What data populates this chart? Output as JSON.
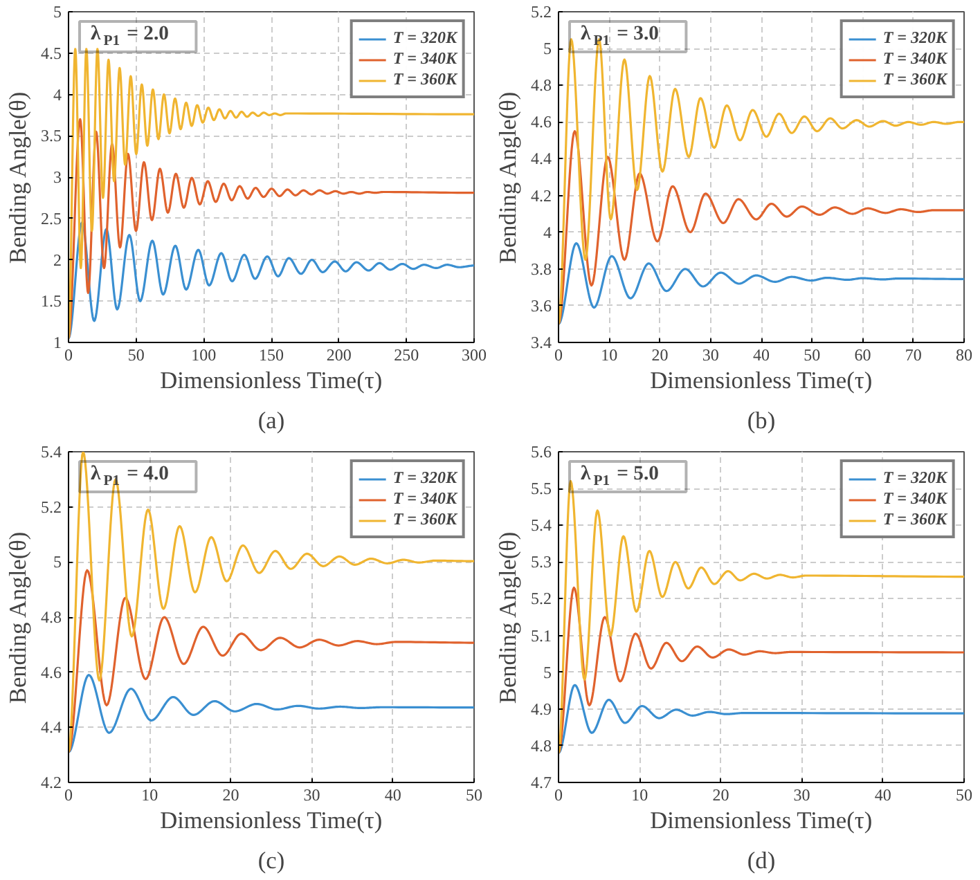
{
  "chart_data": [
    {
      "type": "line",
      "xlabel": "Dimensionless Time(τ)",
      "ylabel": "Bending Angle(θ)",
      "annotations": [
        "λ$_{P1}$ = 2.0",
        "(a)"
      ],
      "xlim": [
        0,
        300
      ],
      "ylim": [
        1,
        5
      ],
      "xticks": [
        0,
        50,
        100,
        150,
        200,
        250,
        300
      ],
      "yticks": [
        1,
        1.5,
        2,
        2.5,
        3,
        3.5,
        4,
        4.5,
        5
      ],
      "grid": true,
      "legend": "top right",
      "line_style": "solid",
      "series": [
        {
          "name": "T = 320K",
          "color": "#3a8fd1",
          "x": [
            0,
            10,
            19,
            28,
            36,
            45,
            53,
            62,
            70,
            79,
            87,
            96,
            104,
            113,
            121,
            130,
            138,
            147,
            155,
            163,
            172,
            180,
            188,
            197,
            205,
            213,
            222,
            230,
            238,
            247,
            255,
            263,
            272,
            280,
            289,
            300
          ],
          "values": [
            1.05,
            2.45,
            1.26,
            2.37,
            1.4,
            2.3,
            1.5,
            2.23,
            1.58,
            2.17,
            1.64,
            2.12,
            1.69,
            2.08,
            1.74,
            2.06,
            1.77,
            2.04,
            1.8,
            2.02,
            1.83,
            2.0,
            1.85,
            1.98,
            1.86,
            1.97,
            1.87,
            1.96,
            1.88,
            1.95,
            1.89,
            1.94,
            1.9,
            1.94,
            1.91,
            1.93
          ]
        },
        {
          "name": "T = 340K",
          "color": "#e0622d",
          "x": [
            0,
            8.6,
            14.5,
            20.4,
            26.3,
            32.2,
            38.1,
            44,
            49.9,
            55.8,
            61.7,
            67.6,
            73.5,
            79.4,
            85.3,
            91.2,
            97.1,
            103,
            108.9,
            114.8,
            120.7,
            126.6,
            132.5,
            138.4,
            144.3,
            150.2,
            156.1,
            162,
            167.9,
            173.8,
            179.7,
            185.6,
            191.5,
            197.4,
            203.3,
            209.2,
            215.1,
            221,
            226.9,
            232.8,
            300
          ],
          "values": [
            1.05,
            3.7,
            1.6,
            3.55,
            1.9,
            3.4,
            2.15,
            3.28,
            2.35,
            3.18,
            2.48,
            3.1,
            2.57,
            3.04,
            2.63,
            2.99,
            2.67,
            2.95,
            2.7,
            2.92,
            2.72,
            2.89,
            2.74,
            2.87,
            2.76,
            2.86,
            2.77,
            2.85,
            2.78,
            2.84,
            2.79,
            2.84,
            2.8,
            2.83,
            2.8,
            2.82,
            2.8,
            2.82,
            2.81,
            2.82,
            2.81
          ]
        },
        {
          "name": "T = 360K",
          "color": "#f0b530",
          "x": [
            0,
            5,
            9.1,
            13.2,
            17.3,
            21.4,
            25.5,
            29.6,
            33.7,
            37.8,
            41.9,
            46,
            50.1,
            54.2,
            58.3,
            62.4,
            66.5,
            70.6,
            74.7,
            78.8,
            82.9,
            87,
            91.1,
            95.2,
            99.3,
            103.4,
            107.5,
            111.6,
            115.7,
            119.8,
            123.9,
            128,
            132.1,
            136.2,
            140.3,
            144.4,
            148.5,
            152.6,
            156.7,
            160.8,
            300
          ],
          "values": [
            1.05,
            4.55,
            1.9,
            4.55,
            2.35,
            4.55,
            2.75,
            4.42,
            2.95,
            4.32,
            3.15,
            4.22,
            3.28,
            4.12,
            3.38,
            4.06,
            3.46,
            4.0,
            3.53,
            3.95,
            3.58,
            3.9,
            3.62,
            3.87,
            3.66,
            3.84,
            3.69,
            3.82,
            3.71,
            3.8,
            3.72,
            3.79,
            3.73,
            3.78,
            3.74,
            3.78,
            3.75,
            3.77,
            3.75,
            3.77,
            3.76
          ]
        }
      ]
    },
    {
      "type": "line",
      "xlabel": "Dimensionless Time(τ)",
      "ylabel": "Bending Angle(θ)",
      "annotations": [
        "λ$_{P1}$ = 3.0",
        "(b)"
      ],
      "xlim": [
        0,
        80
      ],
      "ylim": [
        3.4,
        5.2
      ],
      "xticks": [
        0,
        10,
        20,
        30,
        40,
        50,
        60,
        70,
        80
      ],
      "yticks": [
        3.4,
        3.6,
        3.8,
        4,
        4.2,
        4.4,
        4.6,
        4.8,
        5,
        5.2
      ],
      "grid": true,
      "legend": "top right",
      "line_style": "solid",
      "series": [
        {
          "name": "T = 320K",
          "color": "#3a8fd1",
          "x": [
            0,
            3.5,
            7,
            10.5,
            14.2,
            17.8,
            21.3,
            25,
            28.5,
            32,
            35.6,
            39,
            42.7,
            46,
            49.8,
            53,
            57,
            60,
            64,
            67,
            80
          ],
          "values": [
            3.5,
            3.94,
            3.59,
            3.87,
            3.64,
            3.83,
            3.68,
            3.8,
            3.705,
            3.78,
            3.72,
            3.765,
            3.73,
            3.757,
            3.737,
            3.752,
            3.741,
            3.75,
            3.743,
            3.748,
            3.745
          ]
        },
        {
          "name": "T = 340K",
          "color": "#e0622d",
          "x": [
            0,
            3.2,
            6.5,
            9.7,
            13,
            16,
            19.5,
            22.5,
            26,
            29,
            32.5,
            35.5,
            39,
            42,
            45,
            48,
            51.5,
            54.5,
            58,
            61,
            64.5,
            67.5,
            71,
            74,
            80
          ],
          "values": [
            3.5,
            4.55,
            3.71,
            4.41,
            3.85,
            4.32,
            3.95,
            4.25,
            4.0,
            4.21,
            4.05,
            4.18,
            4.07,
            4.155,
            4.085,
            4.14,
            4.095,
            4.135,
            4.1,
            4.13,
            4.105,
            4.125,
            4.11,
            4.12,
            4.12
          ]
        },
        {
          "name": "T = 360K",
          "color": "#f0b530",
          "x": [
            0,
            2.5,
            5.3,
            8,
            10.3,
            13,
            15.5,
            18,
            20.5,
            23,
            25.7,
            28,
            30.7,
            33.2,
            35.8,
            38.3,
            41,
            43.5,
            46,
            48.5,
            51,
            53.6,
            56,
            58.8,
            61.3,
            64,
            66.5,
            69,
            71.5,
            74,
            76.5,
            79,
            80
          ],
          "values": [
            3.5,
            5.05,
            3.85,
            5.05,
            4.07,
            4.94,
            4.23,
            4.85,
            4.33,
            4.78,
            4.41,
            4.73,
            4.46,
            4.69,
            4.5,
            4.665,
            4.52,
            4.645,
            4.54,
            4.63,
            4.55,
            4.62,
            4.565,
            4.61,
            4.575,
            4.605,
            4.58,
            4.6,
            4.585,
            4.6,
            4.59,
            4.6,
            4.6
          ]
        }
      ]
    },
    {
      "type": "line",
      "xlabel": "Dimensionless Time(τ)",
      "ylabel": "Bending Angle(θ)",
      "annotations": [
        "λ$_{P1}$ = 4.0",
        "(c)"
      ],
      "xlim": [
        0,
        50
      ],
      "ylim": [
        4.2,
        5.4
      ],
      "xticks": [
        0,
        10,
        20,
        30,
        40,
        50
      ],
      "yticks": [
        4.2,
        4.4,
        4.6,
        4.8,
        5,
        5.2,
        5.4
      ],
      "grid": true,
      "legend": "top right",
      "line_style": "solid",
      "series": [
        {
          "name": "T = 320K",
          "color": "#3a8fd1",
          "x": [
            0,
            2.5,
            5,
            7.7,
            10.2,
            12.9,
            15.4,
            18,
            20.5,
            23.2,
            25.7,
            28.3,
            30.9,
            33.5,
            36,
            38.6,
            50
          ],
          "values": [
            4.31,
            4.59,
            4.38,
            4.54,
            4.425,
            4.51,
            4.445,
            4.495,
            4.458,
            4.485,
            4.465,
            4.478,
            4.468,
            4.475,
            4.47,
            4.473,
            4.472
          ]
        },
        {
          "name": "T = 340K",
          "color": "#e0622d",
          "x": [
            0,
            2.3,
            4.7,
            7,
            9.5,
            11.8,
            14.2,
            16.6,
            19,
            21.3,
            23.7,
            26.1,
            28.5,
            30.9,
            33.3,
            35.6,
            38,
            40.4,
            50
          ],
          "values": [
            4.31,
            4.97,
            4.48,
            4.87,
            4.575,
            4.8,
            4.63,
            4.765,
            4.66,
            4.74,
            4.68,
            4.725,
            4.69,
            4.718,
            4.697,
            4.713,
            4.702,
            4.71,
            4.707
          ]
        },
        {
          "name": "T = 360K",
          "color": "#f0b530",
          "x": [
            0,
            1.8,
            3.8,
            5.8,
            7.8,
            9.8,
            11.7,
            13.7,
            15.6,
            17.6,
            19.5,
            21.5,
            23.5,
            25.5,
            27.4,
            29.4,
            31.4,
            33.4,
            35.3,
            37.3,
            39.3,
            41.3,
            43.2,
            45.2,
            50
          ],
          "values": [
            4.31,
            5.4,
            4.57,
            5.3,
            4.73,
            5.19,
            4.83,
            5.13,
            4.89,
            5.09,
            4.93,
            5.06,
            4.96,
            5.04,
            4.975,
            5.03,
            4.985,
            5.02,
            4.99,
            5.012,
            4.995,
            5.008,
            4.998,
            5.005,
            5.003
          ]
        }
      ]
    },
    {
      "type": "line",
      "xlabel": "Dimensionless Time(τ)",
      "ylabel": "Bending Angle(θ)",
      "annotations": [
        "λ$_{P1}$ = 5.0",
        "(d)"
      ],
      "xlim": [
        0,
        50
      ],
      "ylim": [
        4.7,
        5.6
      ],
      "xticks": [
        0,
        10,
        20,
        30,
        40,
        50
      ],
      "yticks": [
        4.7,
        4.8,
        4.9,
        5,
        5.1,
        5.2,
        5.3,
        5.4,
        5.5,
        5.6
      ],
      "grid": true,
      "legend": "top right",
      "line_style": "solid",
      "series": [
        {
          "name": "T = 320K",
          "color": "#3a8fd1",
          "x": [
            0,
            2,
            4.1,
            6.2,
            8.2,
            10.3,
            12.4,
            14.5,
            16.5,
            18.6,
            20.7,
            22.8,
            50
          ],
          "values": [
            4.78,
            4.965,
            4.835,
            4.925,
            4.862,
            4.908,
            4.875,
            4.898,
            4.882,
            4.892,
            4.886,
            4.889,
            4.888
          ]
        },
        {
          "name": "T = 340K",
          "color": "#e0622d",
          "x": [
            0,
            1.9,
            3.8,
            5.7,
            7.6,
            9.5,
            11.4,
            13.3,
            15.2,
            17.1,
            19,
            21,
            22.9,
            24.8,
            26.7,
            28.6,
            50
          ],
          "values": [
            4.78,
            5.23,
            4.91,
            5.15,
            4.975,
            5.105,
            5.01,
            5.08,
            5.03,
            5.07,
            5.04,
            5.062,
            5.048,
            5.057,
            5.052,
            5.055,
            5.054
          ]
        },
        {
          "name": "T = 360K",
          "color": "#f0b530",
          "x": [
            0,
            1.5,
            3.2,
            4.8,
            6.4,
            8,
            9.6,
            11.2,
            12.8,
            14.4,
            16,
            17.6,
            19.2,
            20.9,
            22.4,
            24.1,
            25.7,
            27.3,
            28.9,
            30.5,
            50
          ],
          "values": [
            4.78,
            5.52,
            4.98,
            5.44,
            5.1,
            5.37,
            5.165,
            5.33,
            5.205,
            5.3,
            5.228,
            5.285,
            5.24,
            5.275,
            5.25,
            5.268,
            5.255,
            5.265,
            5.258,
            5.263,
            5.26
          ]
        }
      ]
    }
  ]
}
